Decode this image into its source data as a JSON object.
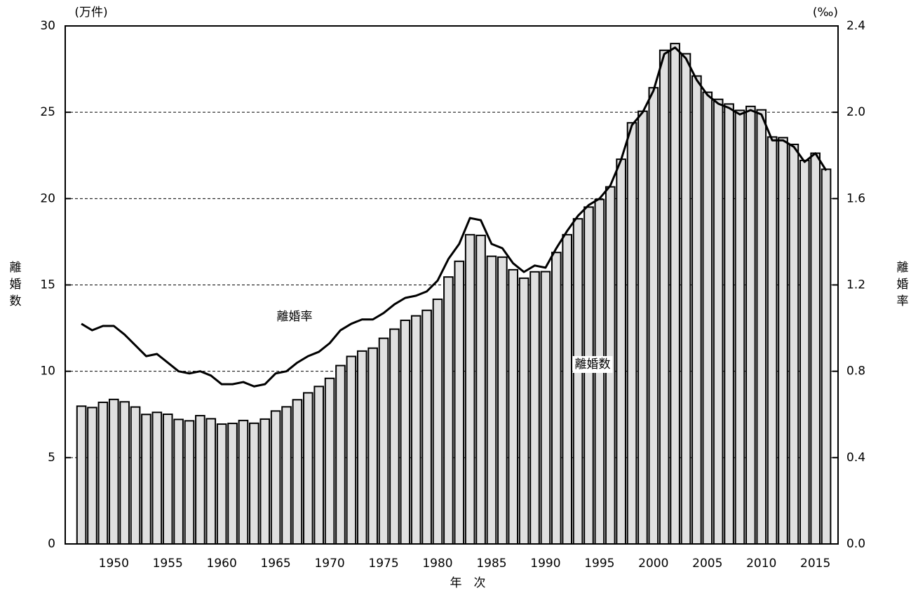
{
  "chart_data": {
    "type": "bar_line",
    "y_label": "離婚数",
    "y2_label": "離婚率",
    "y_unit": "(万件)",
    "y2_unit": "(‰)",
    "x_label": "年　次",
    "annotations": [
      {
        "text": "離婚率",
        "target": "series.1"
      },
      {
        "text": "離婚数",
        "target": "series.0"
      }
    ],
    "x": [
      1947,
      1948,
      1949,
      1950,
      1951,
      1952,
      1953,
      1954,
      1955,
      1956,
      1957,
      1958,
      1959,
      1960,
      1961,
      1962,
      1963,
      1964,
      1965,
      1966,
      1967,
      1968,
      1969,
      1970,
      1971,
      1972,
      1973,
      1974,
      1975,
      1976,
      1977,
      1978,
      1979,
      1980,
      1981,
      1982,
      1983,
      1984,
      1985,
      1986,
      1987,
      1988,
      1989,
      1990,
      1991,
      1992,
      1993,
      1994,
      1995,
      1996,
      1997,
      1998,
      1999,
      2000,
      2001,
      2002,
      2003,
      2004,
      2005,
      2006,
      2007,
      2008,
      2009,
      2010,
      2011,
      2012,
      2013,
      2014,
      2015,
      2016
    ],
    "series": [
      {
        "name": "離婚数",
        "type": "bar",
        "color": "#e0e0e0",
        "values": [
          7.98,
          7.9,
          8.2,
          8.37,
          8.23,
          7.93,
          7.5,
          7.62,
          7.51,
          7.21,
          7.13,
          7.43,
          7.25,
          6.94,
          6.98,
          7.15,
          6.99,
          7.23,
          7.7,
          7.94,
          8.35,
          8.75,
          9.12,
          9.59,
          10.33,
          10.86,
          11.17,
          11.34,
          11.91,
          12.44,
          12.95,
          13.21,
          13.53,
          14.17,
          15.46,
          16.37,
          17.91,
          17.87,
          16.66,
          16.61,
          15.88,
          15.39,
          15.76,
          15.77,
          16.88,
          17.91,
          18.83,
          19.51,
          19.95,
          20.68,
          22.28,
          24.39,
          25.06,
          26.42,
          28.59,
          28.98,
          28.39,
          27.1,
          26.16,
          25.75,
          25.48,
          25.11,
          25.34,
          25.14,
          23.57,
          23.53,
          23.14,
          22.21,
          22.63,
          21.7
        ]
      },
      {
        "name": "離婚率",
        "type": "line",
        "axis": "y2",
        "color": "#000000",
        "values": [
          1.02,
          0.99,
          1.01,
          1.01,
          0.97,
          0.92,
          0.87,
          0.88,
          0.84,
          0.8,
          0.79,
          0.8,
          0.78,
          0.74,
          0.74,
          0.75,
          0.73,
          0.74,
          0.79,
          0.8,
          0.84,
          0.87,
          0.89,
          0.93,
          0.99,
          1.02,
          1.04,
          1.04,
          1.07,
          1.11,
          1.14,
          1.15,
          1.17,
          1.22,
          1.32,
          1.39,
          1.51,
          1.5,
          1.39,
          1.37,
          1.3,
          1.26,
          1.29,
          1.28,
          1.37,
          1.45,
          1.52,
          1.57,
          1.6,
          1.66,
          1.78,
          1.94,
          2.0,
          2.1,
          2.27,
          2.3,
          2.25,
          2.15,
          2.08,
          2.04,
          2.02,
          1.99,
          2.01,
          1.99,
          1.87,
          1.87,
          1.84,
          1.77,
          1.81,
          1.73
        ]
      }
    ],
    "xlim": [
      1945.5,
      2017.1
    ],
    "xticks": [
      1950,
      1955,
      1960,
      1965,
      1970,
      1975,
      1980,
      1985,
      1990,
      1995,
      2000,
      2005,
      2010,
      2015
    ],
    "ylim": [
      0,
      30
    ],
    "yticks": [
      0,
      5,
      10,
      15,
      20,
      25,
      30
    ],
    "y2lim": [
      0,
      2.4
    ],
    "y2ticks": [
      {
        "value": 0,
        "label": "0.0"
      },
      0.4,
      0.8,
      1.2,
      1.6,
      {
        "value": 2,
        "label": "2.0"
      },
      2.4
    ],
    "grid": true
  }
}
